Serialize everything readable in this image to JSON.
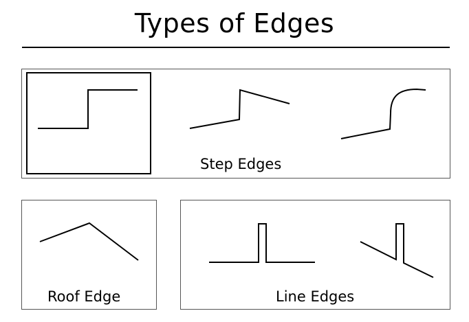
{
  "title": "Types of Edges",
  "groups": {
    "step": {
      "caption": "Step Edges"
    },
    "roof": {
      "caption": "Roof Edge"
    },
    "line": {
      "caption": "Line Edges"
    }
  }
}
